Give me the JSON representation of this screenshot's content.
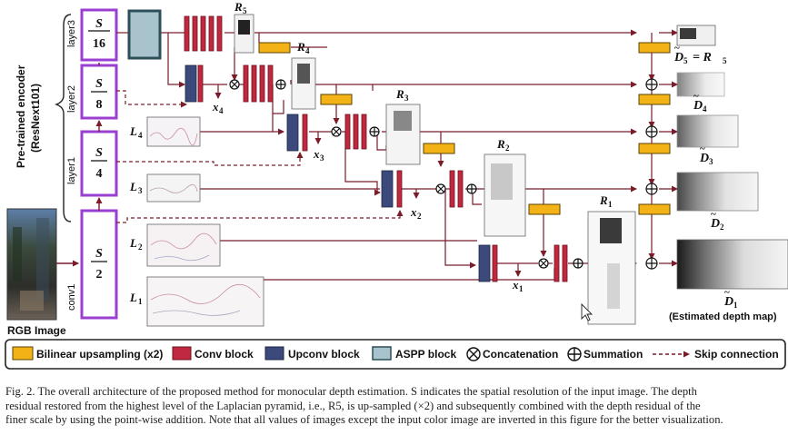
{
  "figure": {
    "encoder_title_1": "Pre-trained encoder",
    "encoder_title_2": "(ResNext101)",
    "layers": {
      "layer3": "layer3",
      "layer2": "layer2",
      "layer1": "layer1",
      "conv1": "conv1"
    },
    "resolutions": {
      "s16": {
        "num": "S",
        "den": "16"
      },
      "s8": {
        "num": "S",
        "den": "8"
      },
      "s4": {
        "num": "S",
        "den": "4"
      },
      "s2": {
        "num": "S",
        "den": "2"
      }
    },
    "input_label": "RGB Image",
    "laplacian": {
      "L1": "L",
      "L2": "L",
      "L3": "L",
      "L4": "L",
      "sub1": "1",
      "sub2": "2",
      "sub3": "3",
      "sub4": "4"
    },
    "residuals": {
      "R5": "R",
      "R4": "R",
      "R3": "R",
      "R2": "R",
      "R1": "R",
      "s5": "5",
      "s4": "4",
      "s3": "3",
      "s2": "2",
      "s1": "1"
    },
    "features": {
      "x4": "x",
      "x3": "x",
      "x2": "x",
      "x1": "x",
      "s4": "4",
      "s3": "3",
      "s2": "2",
      "s1": "1"
    },
    "outputs": {
      "D5": "D",
      "D4": "D",
      "D3": "D",
      "D2": "D",
      "D1": "D",
      "s5": "5",
      "s4": "4",
      "s3": "3",
      "s2": "2",
      "s1": "1",
      "d5_eq": "= R",
      "d5_eq_sub": "5",
      "final": "(Estimated depth map)"
    },
    "legend": {
      "bilinear": "Bilinear upsampling (x2)",
      "conv": "Conv block",
      "upconv": "Upconv block",
      "aspp": "ASPP block",
      "concat": "Concatenation",
      "sum": "Summation",
      "skip": "Skip connection"
    },
    "colors": {
      "conv": "#c0283f",
      "upconv": "#3b4a7a",
      "aspp": "#a9c3cc",
      "bilinear": "#f3b317",
      "encoder": "#9b3fd0",
      "line": "#7a1c2a"
    }
  },
  "caption": {
    "line1": "Fig. 2.  The overall architecture of the proposed method for monocular depth estimation. S indicates the spatial resolution of the input image. The depth",
    "line2": "residual restored from the highest level of the Laplacian pyramid, i.e., R5, is up-sampled (×2) and subsequently combined with the depth residual of the",
    "line3": "finer scale by using the point-wise addition. Note that all values of images except the input color image are inverted in this figure for the better visualization."
  }
}
